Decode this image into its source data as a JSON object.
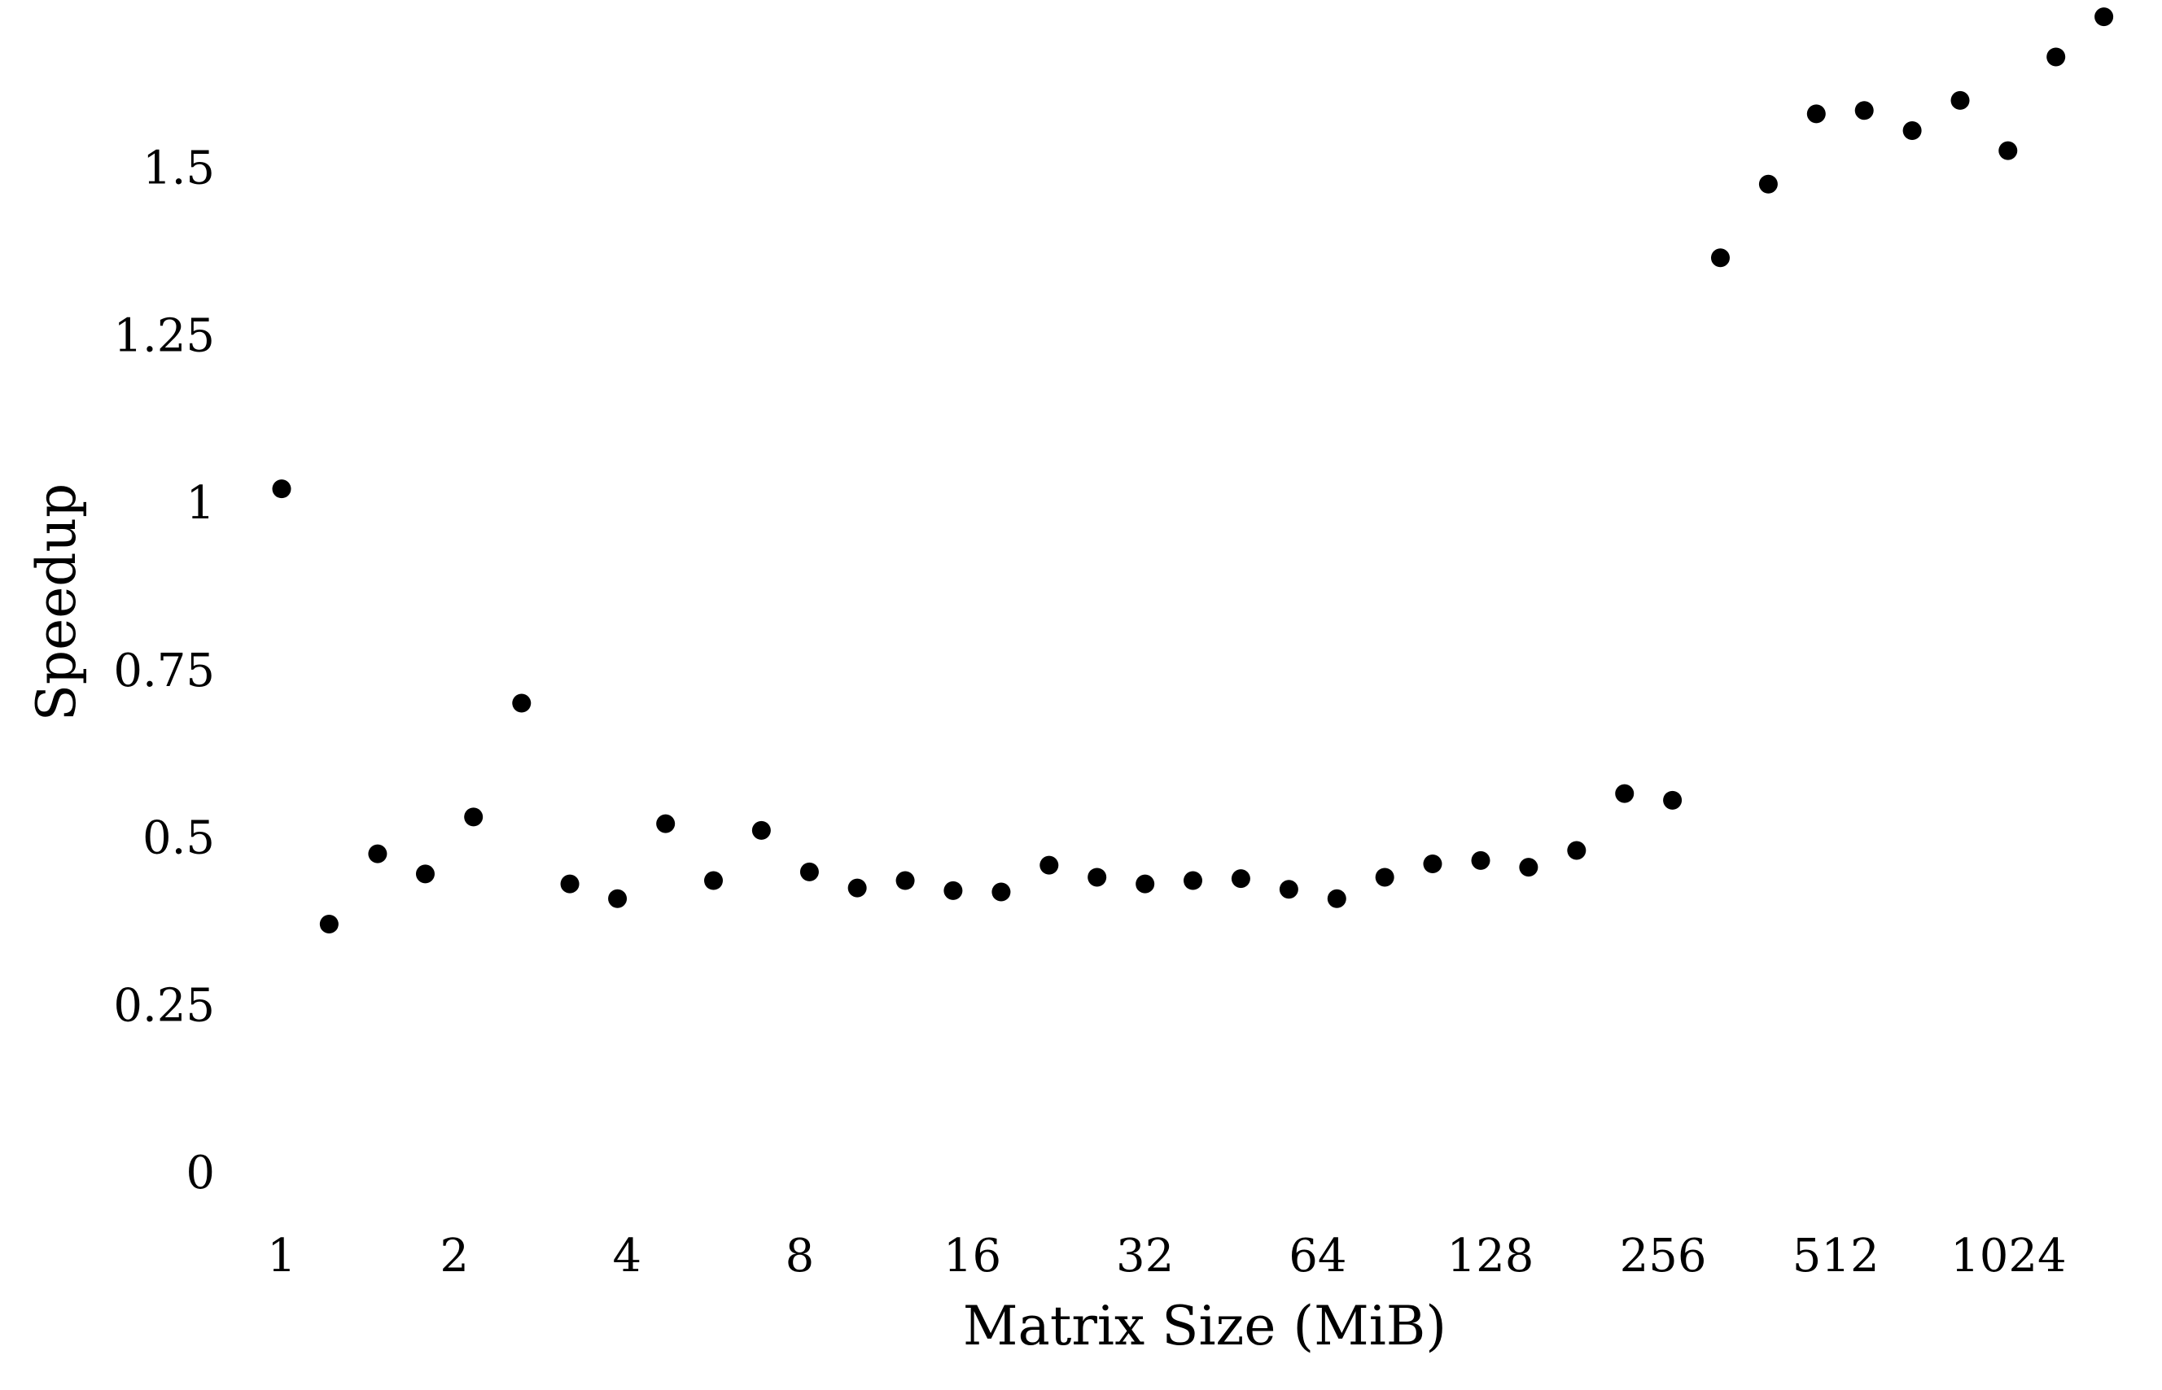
{
  "chart_data": {
    "type": "scatter",
    "title": "",
    "xlabel": "Matrix Size (MiB)",
    "ylabel": "Speedup",
    "x_scale": "log2",
    "xlim": [
      1,
      1800
    ],
    "ylim": [
      0,
      1.75
    ],
    "x_ticks": [
      1,
      2,
      4,
      8,
      16,
      32,
      64,
      128,
      256,
      512,
      1024
    ],
    "x_tick_labels": [
      "1",
      "2",
      "4",
      "8",
      "16",
      "32",
      "64",
      "128",
      "256",
      "512",
      "1024"
    ],
    "y_ticks": [
      0,
      0.25,
      0.5,
      0.75,
      1,
      1.25,
      1.5
    ],
    "y_tick_labels": [
      "0",
      "0.25",
      "0.5",
      "0.75",
      "1",
      "1.25",
      "1.5"
    ],
    "grid": false,
    "marker_color": "#000000",
    "series": [
      {
        "x": [
          1,
          1.21,
          1.47,
          1.78,
          2.16,
          2.62,
          3.18,
          3.85,
          4.67,
          5.66,
          6.86,
          8.32,
          10.08,
          12.22,
          14.81,
          17.96,
          21.77,
          26.39,
          32,
          38.78,
          47.01,
          57,
          69.1,
          83.76,
          101.5,
          123.1,
          149.2,
          180.9,
          219.3,
          265.8,
          322.2,
          390.6,
          473.5,
          574,
          695.8,
          843.5,
          1022,
          1239,
          1502
        ],
        "y": [
          1.02,
          0.37,
          0.475,
          0.445,
          0.53,
          0.7,
          0.43,
          0.408,
          0.52,
          0.435,
          0.51,
          0.448,
          0.424,
          0.435,
          0.42,
          0.418,
          0.458,
          0.44,
          0.43,
          0.435,
          0.438,
          0.422,
          0.408,
          0.44,
          0.46,
          0.465,
          0.455,
          0.48,
          0.565,
          0.555,
          1.365,
          1.475,
          1.58,
          1.585,
          1.555,
          1.6,
          1.525,
          1.665,
          1.725
        ]
      }
    ]
  }
}
